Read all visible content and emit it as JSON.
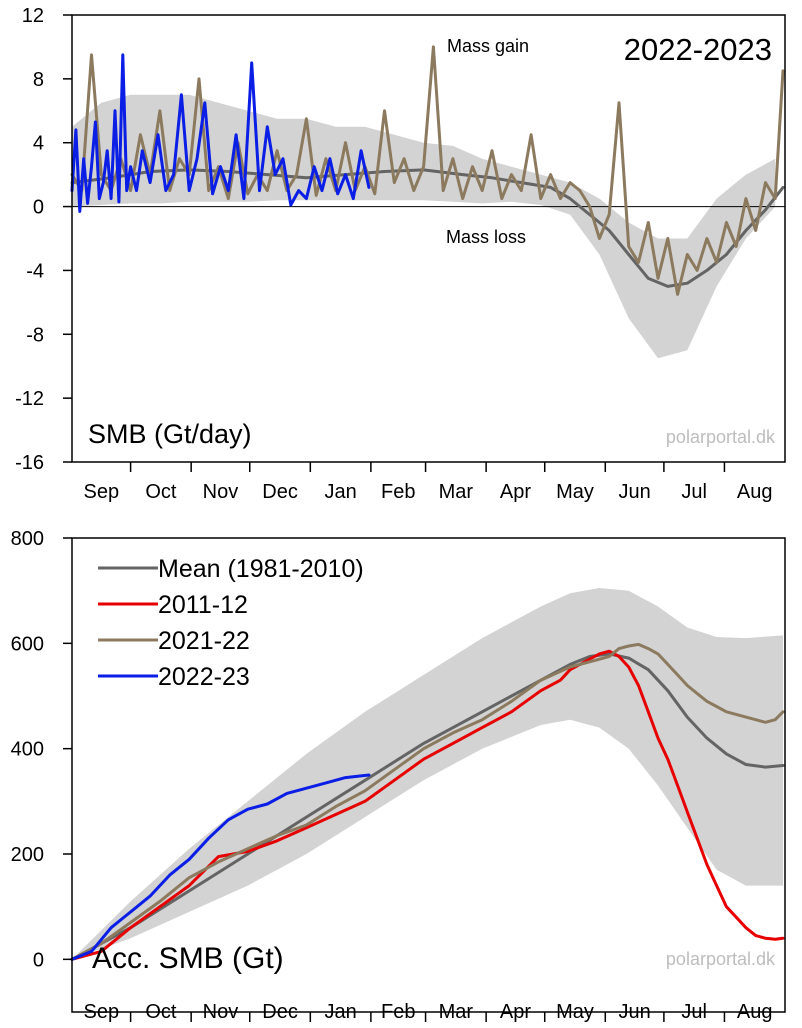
{
  "chart_data": [
    {
      "type": "line",
      "title": "SMB (Gt/day)",
      "season_label": "2022-2023",
      "watermark": "polarportal.dk",
      "annotations": [
        "Mass gain",
        "Mass loss"
      ],
      "xlabel": "",
      "ylabel": "",
      "x_unit": "day of season (1 Sep = 0)",
      "ylim": [
        -16,
        12
      ],
      "yticks": [
        12,
        8,
        4,
        0,
        -4,
        -8,
        -12,
        -16
      ],
      "months": [
        "Sep",
        "Oct",
        "Nov",
        "Dec",
        "Jan",
        "Feb",
        "Mar",
        "Apr",
        "May",
        "Jun",
        "Jul",
        "Aug"
      ],
      "grid": false,
      "zero_line": true,
      "band": {
        "x": [
          0,
          15,
          30,
          45,
          60,
          75,
          90,
          105,
          120,
          135,
          150,
          165,
          180,
          195,
          210,
          225,
          240,
          255,
          270,
          285,
          300,
          315,
          330,
          345,
          360
        ],
        "low": [
          0,
          0.1,
          0.2,
          0.2,
          0.3,
          0.3,
          0.3,
          0.4,
          0.4,
          0.4,
          0.4,
          0.4,
          0.4,
          0.3,
          0.2,
          0.3,
          0.1,
          -0.5,
          -3.0,
          -7.0,
          -9.5,
          -9.0,
          -5.0,
          -2.0,
          0
        ],
        "high": [
          5.0,
          6.5,
          7.0,
          7.0,
          7.0,
          6.5,
          6.0,
          5.5,
          5.5,
          5.0,
          5.0,
          4.5,
          4.0,
          3.8,
          3.0,
          2.5,
          2.0,
          1.5,
          0.5,
          -1.0,
          -2.0,
          -2.0,
          0.5,
          2.0,
          3.0
        ]
      },
      "series": [
        {
          "name": "Mean (1981-2010)",
          "color": "#646464",
          "x": [
            0,
            20,
            40,
            60,
            80,
            100,
            120,
            140,
            160,
            180,
            200,
            215,
            230,
            245,
            255,
            265,
            275,
            285,
            295,
            305,
            315,
            325,
            335,
            345,
            355,
            364
          ],
          "values": [
            1.5,
            1.8,
            2.2,
            2.3,
            2.2,
            2.0,
            1.8,
            2.0,
            2.2,
            2.3,
            2.0,
            1.8,
            1.5,
            1.2,
            0.5,
            -0.5,
            -1.5,
            -3.0,
            -4.5,
            -5.0,
            -4.8,
            -4.0,
            -3.0,
            -1.5,
            -0.2,
            1.2
          ]
        },
        {
          "name": "2021-22",
          "color": "#8c7a5f",
          "x": [
            0,
            5,
            10,
            15,
            20,
            25,
            30,
            35,
            40,
            45,
            50,
            55,
            60,
            65,
            70,
            75,
            80,
            85,
            90,
            95,
            100,
            105,
            110,
            115,
            120,
            125,
            130,
            135,
            140,
            145,
            150,
            155,
            160,
            165,
            170,
            175,
            180,
            185,
            190,
            195,
            200,
            205,
            210,
            215,
            220,
            225,
            230,
            235,
            240,
            245,
            250,
            255,
            260,
            265,
            270,
            275,
            280,
            285,
            290,
            295,
            300,
            305,
            310,
            315,
            320,
            325,
            330,
            335,
            340,
            345,
            350,
            355,
            360,
            364
          ],
          "values": [
            2.0,
            1.0,
            9.5,
            2.0,
            1.0,
            3.0,
            1.0,
            4.5,
            2.0,
            6.0,
            1.0,
            3.0,
            2.0,
            8.0,
            1.0,
            2.5,
            0.5,
            4.0,
            0.8,
            2.0,
            1.0,
            3.5,
            1.0,
            2.0,
            5.5,
            0.7,
            3.0,
            1.0,
            4.0,
            1.0,
            2.5,
            0.8,
            6.0,
            1.5,
            3.0,
            1.0,
            2.5,
            10.0,
            1.0,
            3.0,
            0.5,
            2.5,
            1.0,
            3.5,
            0.5,
            2.0,
            1.0,
            4.5,
            0.5,
            2.0,
            0.5,
            1.5,
            1.0,
            0.0,
            -2.0,
            -0.5,
            6.5,
            -2.5,
            -3.5,
            -1.0,
            -4.5,
            -2.0,
            -5.5,
            -3.0,
            -4.0,
            -2.0,
            -3.5,
            -1.0,
            -2.5,
            0.5,
            -1.5,
            1.5,
            0.5,
            8.5
          ]
        },
        {
          "name": "2022-23",
          "color": "#0a1ee6",
          "x": [
            0,
            2,
            4,
            6,
            8,
            10,
            12,
            14,
            16,
            18,
            20,
            22,
            24,
            26,
            28,
            30,
            33,
            36,
            40,
            44,
            48,
            52,
            56,
            60,
            64,
            68,
            72,
            76,
            80,
            84,
            88,
            92,
            96,
            100,
            104,
            108,
            112,
            116,
            120,
            124,
            128,
            132,
            136,
            140,
            144,
            148,
            152
          ],
          "values": [
            1.0,
            4.8,
            -0.3,
            3.0,
            0.2,
            2.5,
            5.3,
            0.5,
            1.5,
            3.5,
            0.5,
            6.0,
            0.3,
            9.5,
            1.0,
            2.5,
            1.0,
            3.5,
            1.5,
            4.5,
            1.0,
            2.0,
            7.0,
            1.0,
            3.0,
            6.5,
            0.8,
            2.5,
            1.0,
            4.5,
            0.5,
            9.0,
            1.0,
            5.0,
            2.0,
            3.0,
            0.1,
            1.0,
            0.5,
            2.5,
            1.0,
            3.0,
            0.8,
            2.0,
            0.5,
            3.5,
            1.2
          ]
        }
      ]
    },
    {
      "type": "line",
      "title": "Acc. SMB (Gt)",
      "watermark": "polarportal.dk",
      "xlabel": "",
      "ylabel": "",
      "x_unit": "day of season (1 Sep = 0)",
      "ylim": [
        -100,
        800
      ],
      "yticks": [
        800,
        600,
        400,
        200,
        0
      ],
      "months": [
        "Sep",
        "Oct",
        "Nov",
        "Dec",
        "Jan",
        "Feb",
        "Mar",
        "Apr",
        "May",
        "Jun",
        "Jul",
        "Aug"
      ],
      "grid": false,
      "legend_position": "top-left",
      "band": {
        "x": [
          0,
          30,
          60,
          90,
          120,
          150,
          180,
          210,
          240,
          255,
          270,
          285,
          300,
          315,
          330,
          345,
          364
        ],
        "low": [
          0,
          40,
          90,
          140,
          200,
          270,
          340,
          400,
          445,
          455,
          440,
          400,
          330,
          250,
          170,
          140,
          140
        ],
        "high": [
          0,
          110,
          210,
          300,
          390,
          470,
          540,
          610,
          670,
          695,
          705,
          700,
          670,
          630,
          612,
          610,
          615
        ]
      },
      "series": [
        {
          "name": "Mean (1981-2010)",
          "color": "#646464",
          "x": [
            0,
            30,
            60,
            90,
            120,
            150,
            180,
            210,
            240,
            255,
            265,
            275,
            285,
            295,
            305,
            315,
            325,
            335,
            345,
            355,
            364
          ],
          "values": [
            0,
            60,
            130,
            200,
            270,
            340,
            410,
            470,
            530,
            560,
            575,
            580,
            572,
            550,
            510,
            460,
            420,
            390,
            370,
            365,
            368
          ]
        },
        {
          "name": "2011-12",
          "color": "#e60000",
          "x": [
            0,
            15,
            30,
            45,
            60,
            75,
            90,
            105,
            120,
            135,
            150,
            165,
            180,
            195,
            210,
            225,
            240,
            250,
            255,
            260,
            265,
            270,
            275,
            280,
            285,
            290,
            295,
            300,
            305,
            310,
            315,
            320,
            325,
            330,
            335,
            340,
            345,
            350,
            355,
            360,
            364
          ],
          "values": [
            0,
            15,
            60,
            100,
            140,
            195,
            205,
            225,
            250,
            275,
            300,
            340,
            380,
            410,
            440,
            470,
            510,
            530,
            550,
            560,
            570,
            580,
            585,
            575,
            555,
            520,
            470,
            420,
            380,
            330,
            280,
            230,
            180,
            140,
            100,
            80,
            60,
            45,
            40,
            38,
            40
          ]
        },
        {
          "name": "2021-22",
          "color": "#8c7a5f",
          "x": [
            0,
            15,
            30,
            45,
            60,
            75,
            90,
            105,
            120,
            135,
            150,
            165,
            180,
            195,
            210,
            225,
            240,
            255,
            265,
            275,
            280,
            285,
            290,
            295,
            300,
            305,
            310,
            315,
            320,
            325,
            330,
            335,
            340,
            345,
            350,
            355,
            360,
            364
          ],
          "values": [
            0,
            30,
            70,
            110,
            155,
            185,
            210,
            235,
            255,
            290,
            320,
            360,
            400,
            430,
            455,
            490,
            530,
            555,
            565,
            575,
            590,
            595,
            598,
            590,
            580,
            560,
            540,
            520,
            505,
            490,
            480,
            470,
            465,
            460,
            455,
            450,
            455,
            470
          ]
        },
        {
          "name": "2022-23",
          "color": "#0a1ee6",
          "x": [
            0,
            10,
            20,
            30,
            40,
            50,
            60,
            70,
            80,
            90,
            100,
            110,
            120,
            130,
            140,
            152
          ],
          "values": [
            0,
            15,
            60,
            90,
            120,
            160,
            190,
            230,
            265,
            285,
            295,
            315,
            325,
            335,
            345,
            350
          ]
        }
      ]
    }
  ]
}
